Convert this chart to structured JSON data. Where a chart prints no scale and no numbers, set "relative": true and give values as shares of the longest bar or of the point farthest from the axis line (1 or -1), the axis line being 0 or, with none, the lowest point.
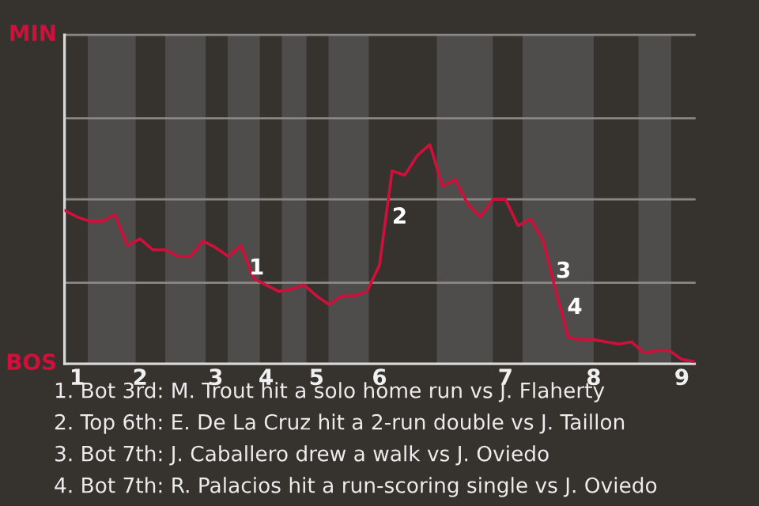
{
  "chart_data": {
    "type": "line",
    "relative": true,
    "categories": [
      null,
      "1",
      null,
      null,
      null,
      null,
      "2",
      null,
      null,
      null,
      null,
      null,
      "3",
      null,
      null,
      null,
      "4",
      null,
      null,
      null,
      "5",
      null,
      null,
      null,
      null,
      "6",
      null,
      null,
      null,
      null,
      null,
      null,
      null,
      null,
      null,
      "7",
      null,
      null,
      null,
      null,
      null,
      null,
      "8",
      null,
      null,
      null,
      null,
      null,
      null,
      "9",
      null
    ],
    "series": [
      {
        "color": "#d0103a",
        "values": [
          0.7,
          0.67,
          0.65,
          0.65,
          0.68,
          0.54,
          0.57,
          0.52,
          0.52,
          0.49,
          0.49,
          0.56,
          0.53,
          0.49,
          0.54,
          0.39,
          0.36,
          0.33,
          0.34,
          0.36,
          0.31,
          0.27,
          0.31,
          0.31,
          0.33,
          0.45,
          0.88,
          0.86,
          0.95,
          1.0,
          0.81,
          0.84,
          0.73,
          0.67,
          0.75,
          0.75,
          0.63,
          0.66,
          0.56,
          0.33,
          0.12,
          0.11,
          0.11,
          0.1,
          0.09,
          0.1,
          0.05,
          0.06,
          0.06,
          0.02,
          0.01
        ]
      }
    ],
    "ref_lines": [
      {
        "axis": "y",
        "value": 0.37,
        "color": "#8a8886"
      },
      {
        "axis": "y",
        "value": 0.75,
        "color": "#8a8886"
      },
      {
        "axis": "y",
        "value": 1.12,
        "color": "#8a8886"
      },
      {
        "axis": "y",
        "value": 1.5,
        "color": "#8a8886"
      }
    ],
    "marker": "none",
    "line_style": "solid",
    "annotations": [
      "1",
      "2",
      "3",
      "4",
      "MIN",
      "BOS",
      "1. Bot 3rd: M. Trout hit a solo home run vs J. Flaherty",
      "2. Top 6th: E. De La Cruz hit a 2-run double vs J. Taillon",
      "3. Bot 7th: J. Caballero drew a walk vs J. Oviedo",
      "4. Bot 7th: R. Palacios hit a run-scoring single vs J. Oviedo"
    ]
  }
}
